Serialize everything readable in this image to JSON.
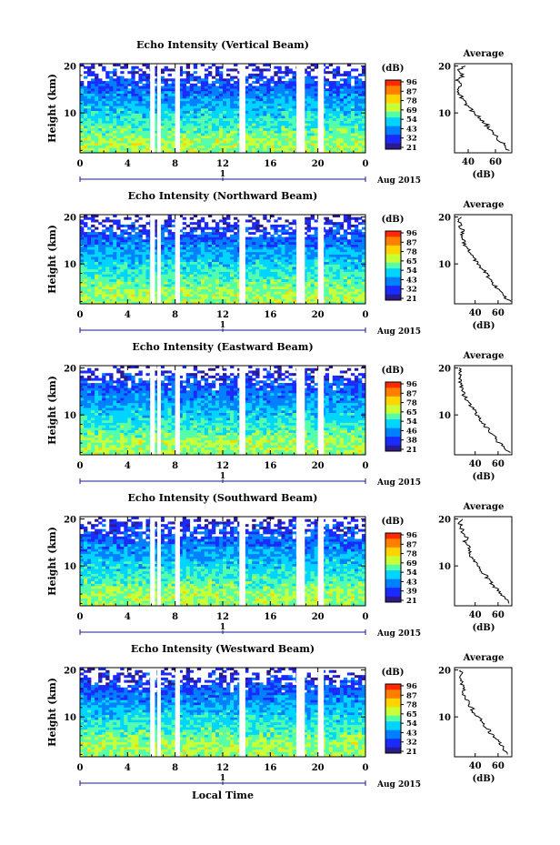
{
  "figure": {
    "x_tick_labels": [
      "0",
      "4",
      "8",
      "12",
      "16",
      "20",
      "0"
    ],
    "y_tick_labels": [
      "20",
      "10"
    ],
    "date_marker": "1",
    "date_label": "Aug 2015",
    "colorbar_unit": "(dB)",
    "colorbar_ticks": [
      "96",
      "87",
      "78",
      "69",
      "54",
      "43",
      "32",
      "21"
    ],
    "colorbar_ticks_alt": [
      "96",
      "87",
      "78",
      "65",
      "54",
      "43",
      "32",
      "21"
    ],
    "colorbar_ticks_eastward": [
      "96",
      "87",
      "78",
      "65",
      "54",
      "46",
      "38",
      "21"
    ],
    "colorbar_ticks_southward": [
      "96",
      "87",
      "78",
      "69",
      "54",
      "43",
      "39",
      "21"
    ],
    "ylabel": "Height (km)",
    "xlabel": "Local Time",
    "avg_title": "Average",
    "avg_xlabel": "(dB)",
    "avg_y_ticks": [
      "20",
      "10"
    ],
    "colorbar_colors": [
      "#ff2a00",
      "#ff7f00",
      "#ffd400",
      "#c8ff37",
      "#55ffaa",
      "#00d4ff",
      "#0080ff",
      "#1a2bff",
      "#2a1a8c"
    ]
  },
  "chart_data": [
    {
      "type": "heatmap",
      "title": "Echo Intensity (Vertical Beam)",
      "xlabel": "",
      "ylabel": "Height (km)",
      "xlim": [
        0,
        24
      ],
      "ylim": [
        1.5,
        20.5
      ],
      "colorbar_range": [
        21,
        96
      ],
      "data_gaps_hours": [
        [
          5.9,
          6.3
        ],
        [
          6.5,
          6.8
        ],
        [
          8.0,
          8.4
        ],
        [
          13.4,
          13.9
        ],
        [
          18.2,
          18.9
        ],
        [
          20.0,
          20.5
        ]
      ],
      "avg_profile": {
        "title": "Average",
        "xlabel": "(dB)",
        "xticks": [
          "40",
          "60"
        ],
        "xlim": [
          30,
          72
        ],
        "height_km": [
          2,
          3,
          4,
          5,
          6,
          7,
          8,
          9,
          10,
          11,
          12,
          13,
          14,
          15,
          16,
          17,
          18,
          19,
          20
        ],
        "db": [
          70,
          68,
          63,
          60,
          57,
          55,
          52,
          48,
          45,
          41,
          38,
          36,
          34,
          31,
          36,
          33,
          36,
          32,
          38
        ]
      }
    },
    {
      "type": "heatmap",
      "title": "Echo Intensity (Northward Beam)",
      "xlabel": "",
      "ylabel": "Height (km)",
      "xlim": [
        0,
        24
      ],
      "ylim": [
        1.5,
        20.5
      ],
      "colorbar_range": [
        21,
        96
      ],
      "data_gaps_hours": [
        [
          5.9,
          6.3
        ],
        [
          6.5,
          6.8
        ],
        [
          8.0,
          8.4
        ],
        [
          13.4,
          13.9
        ],
        [
          18.2,
          18.9
        ],
        [
          20.0,
          20.5
        ]
      ],
      "avg_profile": {
        "title": "Average",
        "xlabel": "(dB)",
        "xticks": [
          "40",
          "60"
        ],
        "xlim": [
          22,
          72
        ],
        "height_km": [
          2,
          3,
          4,
          5,
          6,
          7,
          8,
          9,
          10,
          11,
          12,
          13,
          14,
          15,
          16,
          17,
          18,
          19,
          20
        ],
        "db": [
          70,
          66,
          62,
          59,
          55,
          52,
          49,
          46,
          42,
          39,
          37,
          34,
          31,
          30,
          28,
          29,
          27,
          26,
          28
        ]
      }
    },
    {
      "type": "heatmap",
      "title": "Echo Intensity (Eastward Beam)",
      "xlabel": "",
      "ylabel": "Height (km)",
      "xlim": [
        0,
        24
      ],
      "ylim": [
        1.5,
        20.5
      ],
      "colorbar_range": [
        21,
        96
      ],
      "data_gaps_hours": [
        [
          5.9,
          6.3
        ],
        [
          6.5,
          6.8
        ],
        [
          8.0,
          8.4
        ],
        [
          13.4,
          13.9
        ],
        [
          18.2,
          18.9
        ],
        [
          20.0,
          20.5
        ]
      ],
      "avg_profile": {
        "title": "Average",
        "xlabel": "(dB)",
        "xticks": [
          "40",
          "60"
        ],
        "xlim": [
          22,
          72
        ],
        "height_km": [
          2,
          3,
          4,
          5,
          6,
          7,
          8,
          9,
          10,
          11,
          12,
          13,
          14,
          15,
          16,
          17,
          18,
          19,
          20
        ],
        "db": [
          70,
          66,
          61,
          58,
          54,
          51,
          48,
          45,
          42,
          39,
          36,
          33,
          31,
          29,
          28,
          27,
          26,
          27,
          26
        ]
      }
    },
    {
      "type": "heatmap",
      "title": "Echo Intensity (Southward Beam)",
      "xlabel": "",
      "ylabel": "Height (km)",
      "xlim": [
        0,
        24
      ],
      "ylim": [
        1.5,
        20.5
      ],
      "colorbar_range": [
        21,
        96
      ],
      "data_gaps_hours": [
        [
          5.9,
          6.3
        ],
        [
          6.5,
          6.8
        ],
        [
          8.0,
          8.4
        ],
        [
          13.4,
          13.9
        ],
        [
          18.2,
          18.9
        ],
        [
          20.0,
          20.5
        ]
      ],
      "avg_profile": {
        "title": "Average",
        "xlabel": "(dB)",
        "xticks": [
          "40",
          "60"
        ],
        "xlim": [
          22,
          72
        ],
        "height_km": [
          2,
          3,
          4,
          5,
          6,
          7,
          8,
          9,
          10,
          11,
          12,
          13,
          14,
          15,
          16,
          17,
          18,
          19,
          20
        ],
        "db": [
          70,
          66,
          62,
          59,
          55,
          52,
          49,
          46,
          42,
          40,
          37,
          35,
          34,
          31,
          33,
          30,
          28,
          27,
          29
        ]
      }
    },
    {
      "type": "heatmap",
      "title": "Echo Intensity (Westward Beam)",
      "xlabel": "Local Time",
      "ylabel": "Height (km)",
      "xlim": [
        0,
        24
      ],
      "ylim": [
        1.5,
        20.5
      ],
      "colorbar_range": [
        21,
        96
      ],
      "data_gaps_hours": [
        [
          5.9,
          6.3
        ],
        [
          6.5,
          6.8
        ],
        [
          8.0,
          8.4
        ],
        [
          13.4,
          13.9
        ],
        [
          18.2,
          18.9
        ],
        [
          20.0,
          20.5
        ]
      ],
      "avg_profile": {
        "title": "Average",
        "xlabel": "(dB)",
        "xticks": [
          "40",
          "60"
        ],
        "xlim": [
          22,
          72
        ],
        "height_km": [
          2,
          3,
          4,
          5,
          6,
          7,
          8,
          9,
          10,
          11,
          12,
          13,
          14,
          15,
          16,
          17,
          18,
          19,
          20
        ],
        "db": [
          70,
          66,
          62,
          59,
          55,
          52,
          49,
          46,
          42,
          39,
          37,
          34,
          31,
          30,
          29,
          28,
          27,
          29,
          27
        ]
      }
    }
  ]
}
